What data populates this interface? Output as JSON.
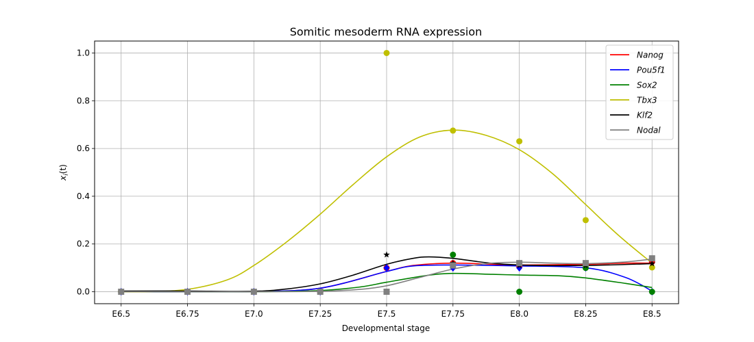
{
  "chart_data": {
    "type": "line",
    "title": "Somitic mesoderm RNA expression",
    "xlabel": "Developmental stage",
    "ylabel_main": "x",
    "ylabel_sub": "i",
    "ylabel_tail": "(t)",
    "x_ticks": [
      "E6.5",
      "E6.75",
      "E7.0",
      "E7.25",
      "E7.5",
      "E7.75",
      "E8.0",
      "E8.25",
      "E8.5"
    ],
    "y_ticks": [
      "0.0",
      "0.2",
      "0.4",
      "0.6",
      "0.8",
      "1.0"
    ],
    "xlim": [
      6.4,
      8.6
    ],
    "ylim": [
      -0.05,
      1.05
    ],
    "grid": true,
    "legend_position": "top-right",
    "series": [
      {
        "name": "Nanog",
        "color": "#ff0000",
        "marker": "circle",
        "points": [
          [
            6.5,
            0.0
          ],
          [
            6.75,
            0.0
          ],
          [
            7.0,
            0.0
          ],
          [
            7.25,
            0.0
          ],
          [
            7.5,
            0.1
          ],
          [
            7.75,
            0.12
          ],
          [
            8.0,
            0.105
          ],
          [
            8.25,
            0.11
          ],
          [
            8.5,
            0.125
          ]
        ],
        "curve": [
          [
            6.5,
            0.0
          ],
          [
            6.75,
            0.0
          ],
          [
            7.0,
            0.001
          ],
          [
            7.25,
            0.015
          ],
          [
            7.5,
            0.085
          ],
          [
            7.6,
            0.11
          ],
          [
            7.75,
            0.12
          ],
          [
            7.9,
            0.115
          ],
          [
            8.0,
            0.112
          ],
          [
            8.25,
            0.115
          ],
          [
            8.4,
            0.12
          ],
          [
            8.5,
            0.12
          ]
        ]
      },
      {
        "name": "Pou5f1",
        "color": "#0000ff",
        "marker": "diamond",
        "points": [
          [
            6.5,
            0.0
          ],
          [
            6.75,
            0.0
          ],
          [
            7.0,
            0.0
          ],
          [
            7.25,
            0.0
          ],
          [
            7.5,
            0.1
          ],
          [
            7.75,
            0.1
          ],
          [
            8.0,
            0.1
          ],
          [
            8.25,
            0.1
          ],
          [
            8.5,
            0.0
          ]
        ],
        "curve": [
          [
            6.5,
            0.0
          ],
          [
            6.75,
            0.0
          ],
          [
            7.0,
            0.001
          ],
          [
            7.25,
            0.015
          ],
          [
            7.5,
            0.085
          ],
          [
            7.6,
            0.108
          ],
          [
            7.75,
            0.112
          ],
          [
            7.9,
            0.11
          ],
          [
            8.0,
            0.108
          ],
          [
            8.25,
            0.1
          ],
          [
            8.4,
            0.06
          ],
          [
            8.5,
            0.003
          ]
        ]
      },
      {
        "name": "Sox2",
        "color": "#008000",
        "marker": "circle",
        "points": [
          [
            6.5,
            0.0
          ],
          [
            6.75,
            0.0
          ],
          [
            7.0,
            0.0
          ],
          [
            7.25,
            0.0
          ],
          [
            7.5,
            0.0
          ],
          [
            7.75,
            0.155
          ],
          [
            8.0,
            0.0
          ],
          [
            8.25,
            0.1
          ],
          [
            8.5,
            0.0
          ]
        ],
        "curve": [
          [
            6.5,
            0.0
          ],
          [
            6.75,
            0.0
          ],
          [
            7.0,
            0.0
          ],
          [
            7.25,
            0.005
          ],
          [
            7.4,
            0.02
          ],
          [
            7.5,
            0.04
          ],
          [
            7.65,
            0.068
          ],
          [
            7.75,
            0.077
          ],
          [
            7.9,
            0.073
          ],
          [
            8.0,
            0.07
          ],
          [
            8.15,
            0.067
          ],
          [
            8.25,
            0.058
          ],
          [
            8.4,
            0.035
          ],
          [
            8.5,
            0.018
          ]
        ]
      },
      {
        "name": "Tbx3",
        "color": "#bfbf00",
        "marker": "circle",
        "points": [
          [
            6.5,
            0.0
          ],
          [
            6.75,
            0.0
          ],
          [
            7.0,
            0.0
          ],
          [
            7.25,
            0.0
          ],
          [
            7.5,
            1.0
          ],
          [
            7.75,
            0.675
          ],
          [
            8.0,
            0.63
          ],
          [
            8.25,
            0.3
          ],
          [
            8.5,
            0.102
          ]
        ],
        "curve": [
          [
            6.5,
            0.0
          ],
          [
            6.6,
            0.0
          ],
          [
            6.75,
            0.01
          ],
          [
            6.9,
            0.05
          ],
          [
            7.0,
            0.11
          ],
          [
            7.125,
            0.21
          ],
          [
            7.25,
            0.325
          ],
          [
            7.375,
            0.45
          ],
          [
            7.5,
            0.565
          ],
          [
            7.625,
            0.648
          ],
          [
            7.75,
            0.677
          ],
          [
            7.875,
            0.655
          ],
          [
            8.0,
            0.595
          ],
          [
            8.125,
            0.495
          ],
          [
            8.25,
            0.365
          ],
          [
            8.375,
            0.235
          ],
          [
            8.5,
            0.12
          ]
        ]
      },
      {
        "name": "Klf2",
        "color": "#000000",
        "marker": "star",
        "points": [
          [
            6.5,
            0.0
          ],
          [
            6.75,
            0.0
          ],
          [
            7.0,
            0.0
          ],
          [
            7.25,
            0.0
          ],
          [
            7.5,
            0.155
          ],
          [
            7.75,
            0.12
          ],
          [
            8.0,
            0.11
          ],
          [
            8.25,
            0.11
          ],
          [
            8.5,
            0.118
          ]
        ],
        "curve": [
          [
            6.5,
            0.003
          ],
          [
            6.75,
            0.003
          ],
          [
            7.0,
            0.002
          ],
          [
            7.125,
            0.012
          ],
          [
            7.25,
            0.033
          ],
          [
            7.375,
            0.07
          ],
          [
            7.5,
            0.115
          ],
          [
            7.6,
            0.14
          ],
          [
            7.66,
            0.146
          ],
          [
            7.75,
            0.14
          ],
          [
            7.875,
            0.122
          ],
          [
            8.0,
            0.112
          ],
          [
            8.25,
            0.11
          ],
          [
            8.5,
            0.118
          ]
        ]
      },
      {
        "name": "Nodal",
        "color": "#808080",
        "marker": "square",
        "points": [
          [
            6.5,
            0.0
          ],
          [
            6.75,
            0.0
          ],
          [
            7.0,
            0.0
          ],
          [
            7.25,
            0.0
          ],
          [
            7.5,
            0.0
          ],
          [
            7.75,
            0.11
          ],
          [
            8.0,
            0.12
          ],
          [
            8.25,
            0.12
          ],
          [
            8.5,
            0.14
          ]
        ],
        "curve": [
          [
            6.5,
            0.0
          ],
          [
            6.75,
            0.0
          ],
          [
            7.0,
            0.0
          ],
          [
            7.25,
            0.002
          ],
          [
            7.4,
            0.01
          ],
          [
            7.5,
            0.025
          ],
          [
            7.625,
            0.06
          ],
          [
            7.75,
            0.095
          ],
          [
            7.875,
            0.118
          ],
          [
            8.0,
            0.124
          ],
          [
            8.125,
            0.12
          ],
          [
            8.25,
            0.118
          ],
          [
            8.4,
            0.125
          ],
          [
            8.5,
            0.137
          ]
        ]
      }
    ]
  }
}
